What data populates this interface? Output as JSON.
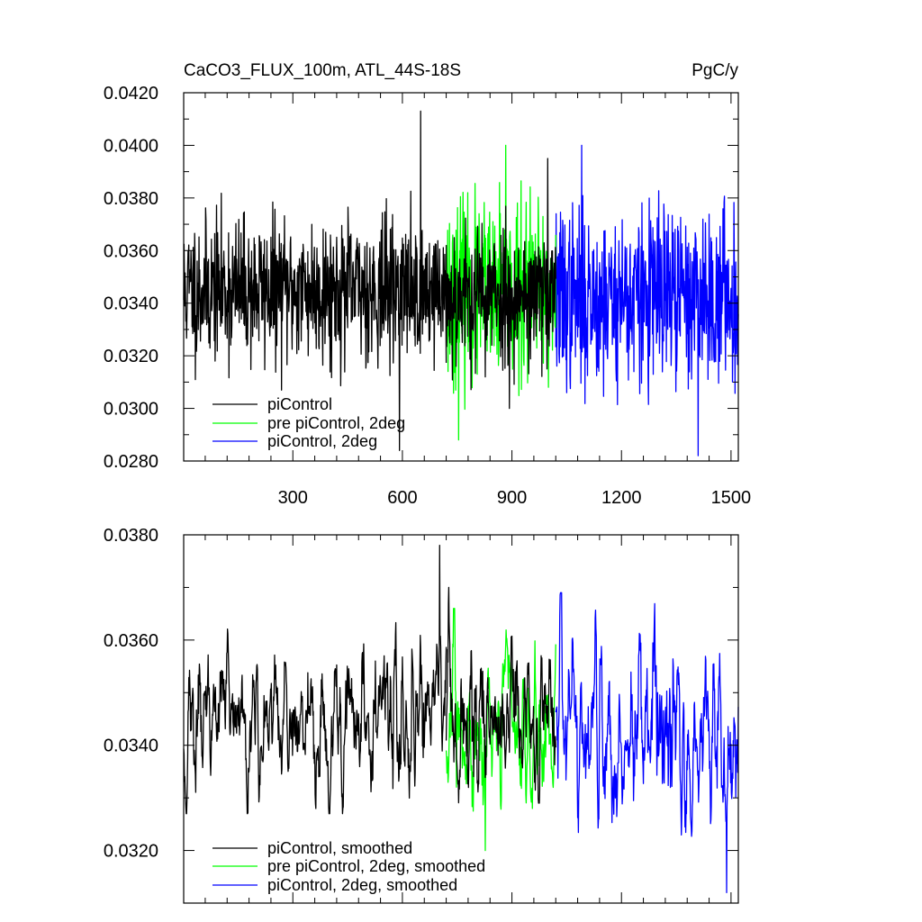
{
  "chart_data": [
    {
      "type": "line",
      "title": "CaCO3_FLUX_100m, ATL_44S-18S",
      "units": "PgC/y",
      "xlim": [
        1,
        1520
      ],
      "ylim": [
        0.028,
        0.042
      ],
      "xticks": [
        300,
        600,
        900,
        1200,
        1500
      ],
      "xtick_labels": [
        "300",
        "600",
        "900",
        "1200",
        "1500"
      ],
      "yticks": [
        0.028,
        0.03,
        0.032,
        0.034,
        0.036,
        0.038,
        0.04,
        0.042
      ],
      "ytick_labels": [
        "0.0280",
        "0.0300",
        "0.0320",
        "0.0340",
        "0.0360",
        "0.0380",
        "0.0400",
        "0.0420"
      ],
      "legend_position": "bottom-left",
      "series": [
        {
          "name": "piControl",
          "color": "#000000",
          "x_range": [
            1,
            720
          ],
          "mean": 0.0345,
          "std": 0.00135,
          "min": 0.0284,
          "max": 0.0413,
          "seed": 11
        },
        {
          "name": "pre piControl, 2deg",
          "color": "#00ff00",
          "x_range": [
            720,
            1020
          ],
          "mean": 0.0343,
          "std": 0.0017,
          "min": 0.0288,
          "max": 0.04,
          "seed": 23
        },
        {
          "name": "piControl, 2deg",
          "color": "#0000ff",
          "x_range": [
            1020,
            1520
          ],
          "mean": 0.0342,
          "std": 0.0017,
          "min": 0.0282,
          "max": 0.04,
          "seed": 37
        },
        {
          "name": "",
          "color": "#000000",
          "x_range": [
            720,
            1020
          ],
          "mean": 0.0343,
          "std": 0.00135,
          "min": 0.03,
          "max": 0.0395,
          "seed": 53
        }
      ]
    },
    {
      "type": "line",
      "title": "",
      "xlim": [
        1,
        1520
      ],
      "ylim": [
        0.031,
        0.038
      ],
      "xticks": [
        300,
        600,
        900,
        1200,
        1500
      ],
      "yticks": [
        0.032,
        0.034,
        0.036,
        0.038
      ],
      "ytick_labels": [
        "0.0320",
        "0.0340",
        "0.0360",
        "0.0380"
      ],
      "legend_position": "bottom-left",
      "series": [
        {
          "name": "piControl, smoothed",
          "color": "#000000",
          "x_range": [
            1,
            720
          ],
          "mean": 0.0345,
          "std": 0.0007,
          "min": 0.0327,
          "max": 0.0378,
          "seed": 71
        },
        {
          "name": "pre piControl, 2deg, smoothed",
          "color": "#00ff00",
          "x_range": [
            720,
            1020
          ],
          "mean": 0.0343,
          "std": 0.0008,
          "min": 0.032,
          "max": 0.0366,
          "seed": 83
        },
        {
          "name": "piControl, 2deg, smoothed",
          "color": "#0000ff",
          "x_range": [
            1020,
            1520
          ],
          "mean": 0.0342,
          "std": 0.0009,
          "min": 0.0312,
          "max": 0.0369,
          "seed": 97
        },
        {
          "name": "",
          "color": "#000000",
          "x_range": [
            720,
            1020
          ],
          "mean": 0.0345,
          "std": 0.0007,
          "min": 0.0329,
          "max": 0.037,
          "seed": 59
        }
      ]
    }
  ]
}
